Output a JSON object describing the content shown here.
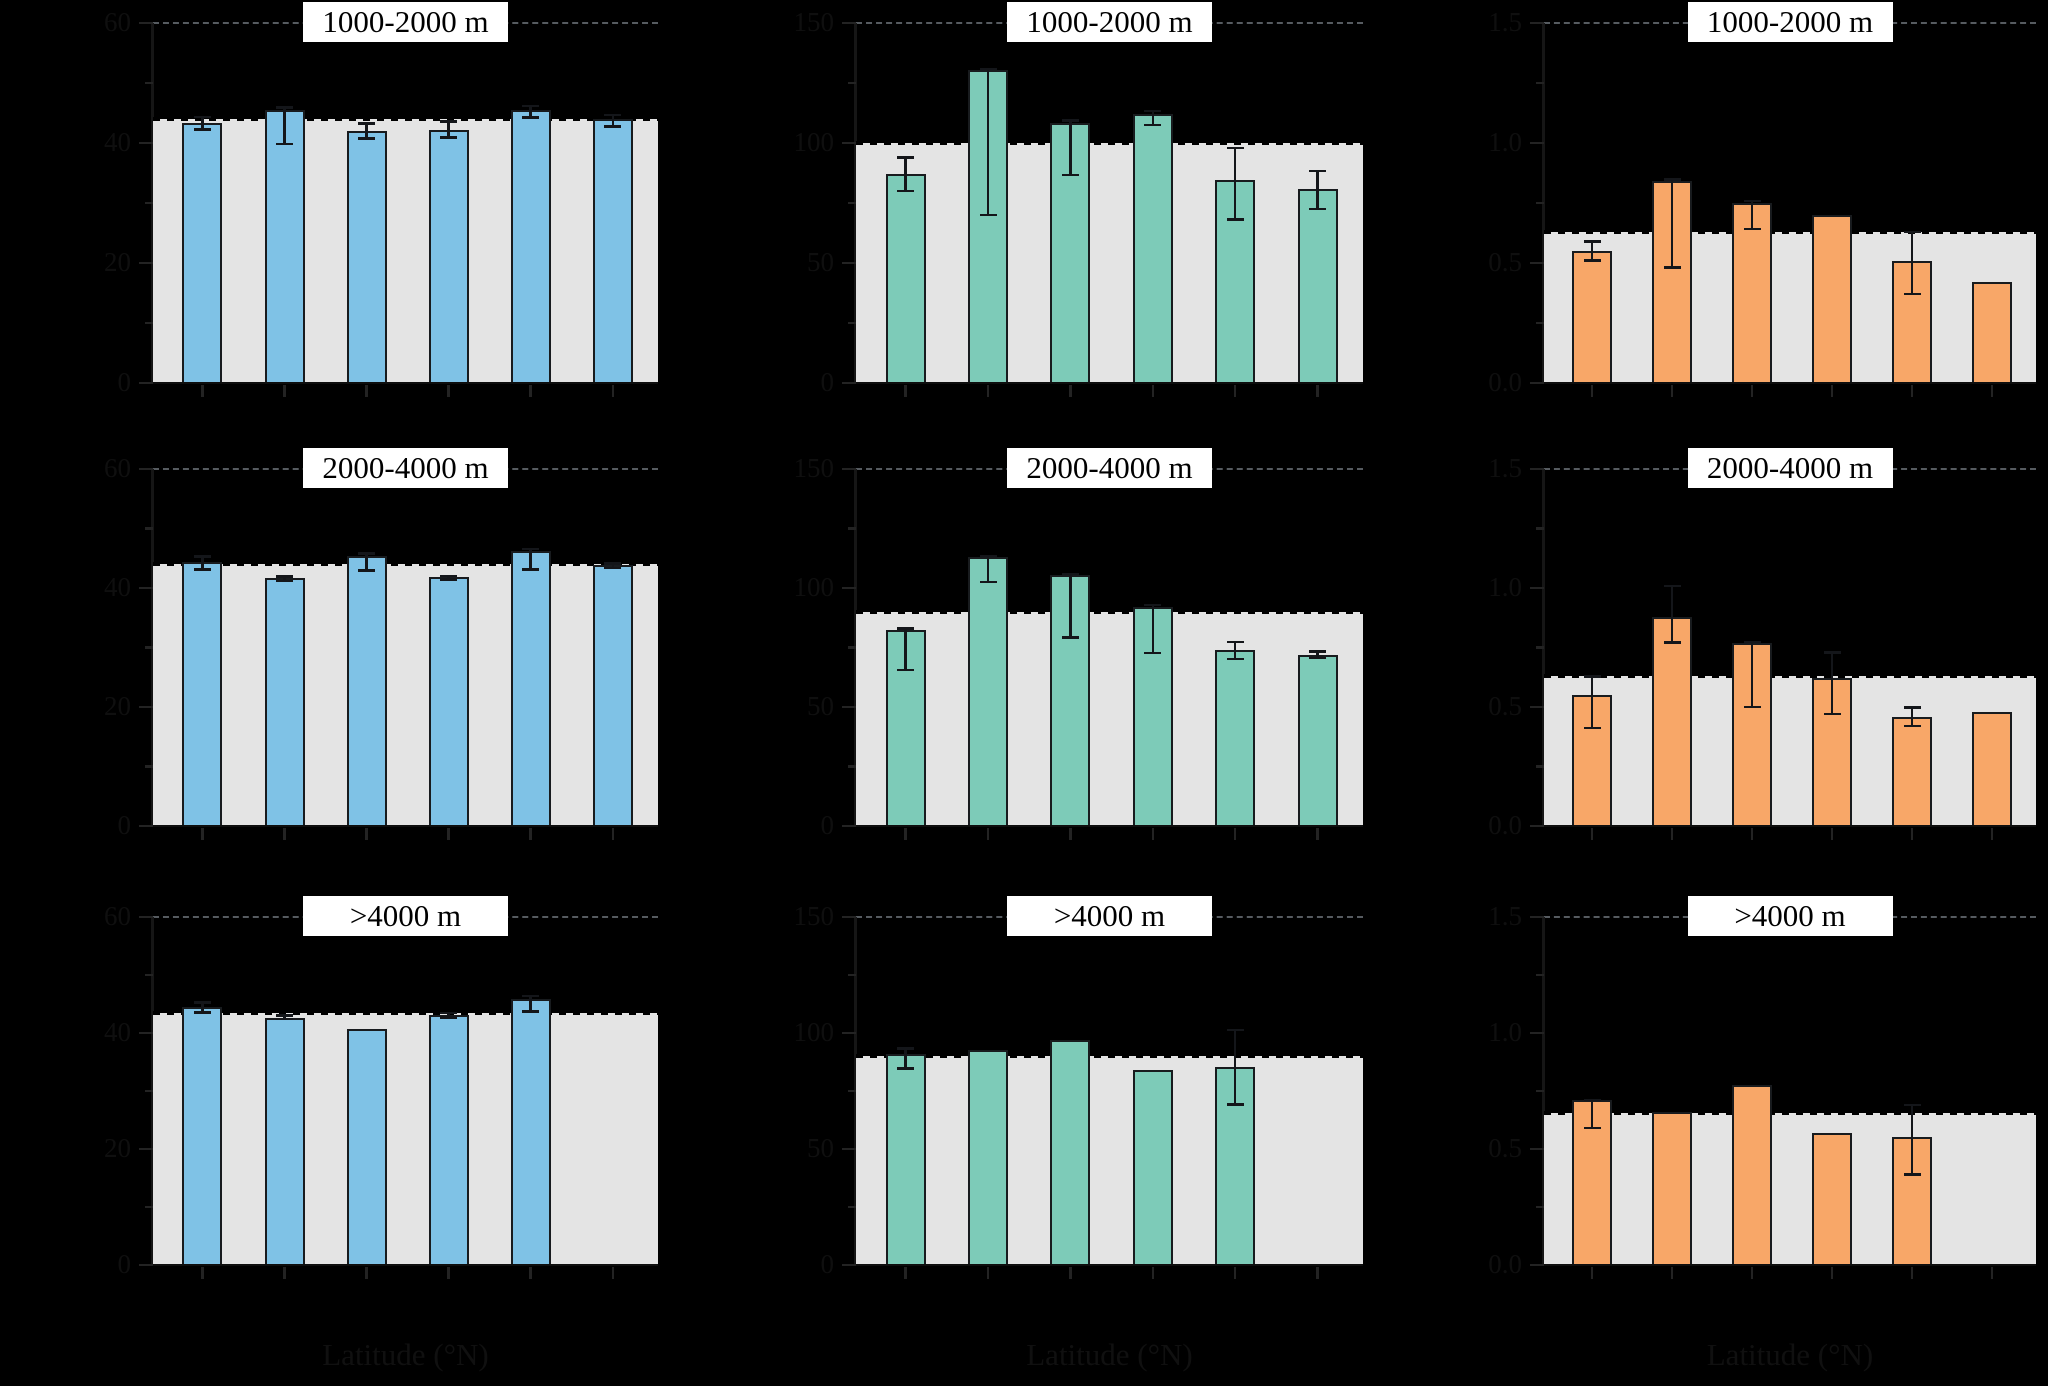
{
  "figure": {
    "background": "#000000",
    "panel_background": "#e4e4e4",
    "bar_edge_color": "#181b1e",
    "reference_dash_color": "#000000",
    "top_spine_dash_color": "#565b60",
    "axis_text_color": "#0f0f0f",
    "title_box": {
      "bg": "#ffffff",
      "text_color": "#000000"
    },
    "row_titles": [
      "1000-2000 m",
      "2000-4000 m",
      ">4000 m"
    ]
  },
  "chart_data": {
    "type": "bar",
    "layout": "3x3 facet grid; rows = elevation bands (titles shown in white boxes), columns = three response metrics; gray band = range below dashed reference line",
    "grid": false,
    "legend": "none",
    "x_axis_label": "Latitude (°N)",
    "x_categories": [
      "",
      "",
      "",
      "",
      "",
      ""
    ],
    "x_tick_labels_note": "six latitude classes per panel; tick label text is rendered black-on-black in the source image and is illegible",
    "columns": [
      {
        "metric": "left-column metric",
        "bar_color": "#7fc2e6",
        "ylim": [
          0,
          60
        ],
        "ytick_labels": [
          "0",
          "20",
          "40",
          "60"
        ],
        "y_axis_label": ""
      },
      {
        "metric": "middle-column metric",
        "bar_color": "#7dcbb8",
        "ylim": [
          0,
          150
        ],
        "ytick_labels": [
          "0",
          "50",
          "100",
          "150"
        ],
        "y_axis_label": ""
      },
      {
        "metric": "right-column metric",
        "bar_color": "#f8a768",
        "ylim": [
          0,
          1.5
        ],
        "ytick_labels": [
          "0.0",
          "0.5",
          "1.0",
          "1.5"
        ],
        "y_axis_label": ""
      }
    ],
    "panels": [
      {
        "row": 0,
        "col": 0,
        "title": "1000-2000 m",
        "reference_value": 44,
        "bars": [
          {
            "value": 43.3,
            "err_lo": 42.2,
            "err_hi": 44.4
          },
          {
            "value": 45.5,
            "err_lo": 39.8,
            "err_hi": 46.0
          },
          {
            "value": 42.0,
            "err_lo": 40.7,
            "err_hi": 43.3
          },
          {
            "value": 42.2,
            "err_lo": 40.9,
            "err_hi": 43.6
          },
          {
            "value": 45.5,
            "err_lo": 44.2,
            "err_hi": 46.2
          },
          {
            "value": 44.0,
            "err_lo": 42.7,
            "err_hi": 44.7
          }
        ]
      },
      {
        "row": 0,
        "col": 1,
        "title": "1000-2000 m",
        "reference_value": 100,
        "bars": [
          {
            "value": 87.0,
            "err_lo": 80.0,
            "err_hi": 94.0
          },
          {
            "value": 130.5,
            "err_lo": 70.0,
            "err_hi": 131.0
          },
          {
            "value": 108.5,
            "err_lo": 86.5,
            "err_hi": 109.5
          },
          {
            "value": 112.0,
            "err_lo": 107.5,
            "err_hi": 113.5
          },
          {
            "value": 84.5,
            "err_lo": 68.0,
            "err_hi": 98.0
          },
          {
            "value": 81.0,
            "err_lo": 72.5,
            "err_hi": 88.5
          }
        ]
      },
      {
        "row": 0,
        "col": 2,
        "title": "1000-2000 m",
        "reference_value": 0.63,
        "bars": [
          {
            "value": 0.55,
            "err_lo": 0.51,
            "err_hi": 0.59
          },
          {
            "value": 0.84,
            "err_lo": 0.48,
            "err_hi": 0.85
          },
          {
            "value": 0.75,
            "err_lo": 0.64,
            "err_hi": 0.76
          },
          {
            "value": 0.7,
            "err_lo": null,
            "err_hi": null
          },
          {
            "value": 0.51,
            "err_lo": 0.37,
            "err_hi": 0.63
          },
          {
            "value": 0.42,
            "err_lo": null,
            "err_hi": null
          }
        ]
      },
      {
        "row": 1,
        "col": 0,
        "title": "2000-4000 m",
        "reference_value": 44,
        "bars": [
          {
            "value": 44.4,
            "err_lo": 43.1,
            "err_hi": 45.3
          },
          {
            "value": 41.6,
            "err_lo": 41.1,
            "err_hi": 42.0
          },
          {
            "value": 45.3,
            "err_lo": 42.9,
            "err_hi": 45.8
          },
          {
            "value": 41.8,
            "err_lo": 41.4,
            "err_hi": 42.1
          },
          {
            "value": 46.2,
            "err_lo": 43.1,
            "err_hi": 46.6
          },
          {
            "value": 43.8,
            "err_lo": 43.3,
            "err_hi": 44.2
          }
        ]
      },
      {
        "row": 1,
        "col": 1,
        "title": "2000-4000 m",
        "reference_value": 90,
        "bars": [
          {
            "value": 82.5,
            "err_lo": 65.5,
            "err_hi": 83.0
          },
          {
            "value": 113.0,
            "err_lo": 102.5,
            "err_hi": 113.5
          },
          {
            "value": 105.5,
            "err_lo": 79.0,
            "err_hi": 106.0
          },
          {
            "value": 92.0,
            "err_lo": 72.5,
            "err_hi": 93.0
          },
          {
            "value": 74.0,
            "err_lo": 70.0,
            "err_hi": 77.5
          },
          {
            "value": 72.0,
            "err_lo": 70.5,
            "err_hi": 73.5
          }
        ]
      },
      {
        "row": 1,
        "col": 2,
        "title": "2000-4000 m",
        "reference_value": 0.63,
        "bars": [
          {
            "value": 0.55,
            "err_lo": 0.41,
            "err_hi": 0.63
          },
          {
            "value": 0.88,
            "err_lo": 0.77,
            "err_hi": 1.01
          },
          {
            "value": 0.77,
            "err_lo": 0.5,
            "err_hi": 0.775
          },
          {
            "value": 0.62,
            "err_lo": 0.47,
            "err_hi": 0.73
          },
          {
            "value": 0.46,
            "err_lo": 0.42,
            "err_hi": 0.5
          },
          {
            "value": 0.48,
            "err_lo": null,
            "err_hi": null
          }
        ]
      },
      {
        "row": 2,
        "col": 0,
        "title": ">4000 m",
        "reference_value": 43.5,
        "bars": [
          {
            "value": 44.4,
            "err_lo": 43.5,
            "err_hi": 45.3
          },
          {
            "value": 42.6,
            "err_lo": 42.4,
            "err_hi": 43.1
          },
          {
            "value": 40.7,
            "err_lo": null,
            "err_hi": null
          },
          {
            "value": 43.1,
            "err_lo": 42.6,
            "err_hi": 43.5
          },
          {
            "value": 45.9,
            "err_lo": 43.7,
            "err_hi": 46.4
          },
          {
            "value": null,
            "err_lo": null,
            "err_hi": null
          }
        ]
      },
      {
        "row": 2,
        "col": 1,
        "title": ">4000 m",
        "reference_value": 90,
        "bars": [
          {
            "value": 91.0,
            "err_lo": 84.5,
            "err_hi": 93.5
          },
          {
            "value": 92.5,
            "err_lo": null,
            "err_hi": null
          },
          {
            "value": 97.0,
            "err_lo": null,
            "err_hi": null
          },
          {
            "value": 84.0,
            "err_lo": null,
            "err_hi": null
          },
          {
            "value": 85.5,
            "err_lo": 69.0,
            "err_hi": 101.5
          },
          {
            "value": null,
            "err_lo": null,
            "err_hi": null
          }
        ]
      },
      {
        "row": 2,
        "col": 2,
        "title": ">4000 m",
        "reference_value": 0.655,
        "bars": [
          {
            "value": 0.71,
            "err_lo": 0.59,
            "err_hi": 0.712
          },
          {
            "value": 0.66,
            "err_lo": null,
            "err_hi": null
          },
          {
            "value": 0.775,
            "err_lo": null,
            "err_hi": null
          },
          {
            "value": 0.57,
            "err_lo": null,
            "err_hi": null
          },
          {
            "value": 0.55,
            "err_lo": 0.39,
            "err_hi": 0.69
          },
          {
            "value": null,
            "err_lo": null,
            "err_hi": null
          }
        ]
      }
    ]
  }
}
